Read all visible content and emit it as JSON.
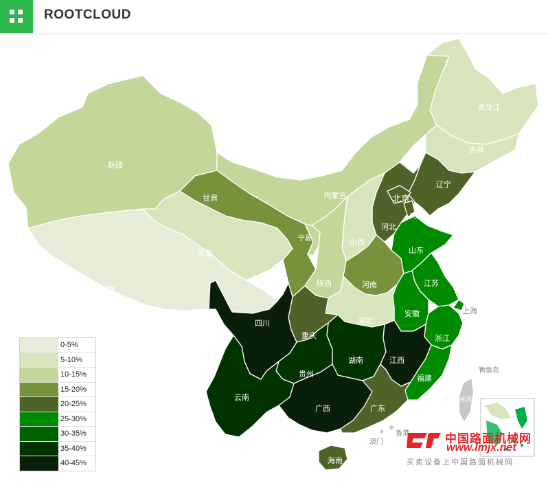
{
  "header": {
    "brand": "ROOTCLOUD",
    "menu_icon": "grid-icon"
  },
  "legend": {
    "items": [
      {
        "label": "0-5%",
        "color": "#e6ecd8"
      },
      {
        "label": "5-10%",
        "color": "#d8e4bc"
      },
      {
        "label": "10-15%",
        "color": "#c4d79b"
      },
      {
        "label": "15-20%",
        "color": "#76933c"
      },
      {
        "label": "20-25%",
        "color": "#4f6228"
      },
      {
        "label": "25-30%",
        "color": "#008a00"
      },
      {
        "label": "30-35%",
        "color": "#006100"
      },
      {
        "label": "35-40%",
        "color": "#003300"
      },
      {
        "label": "40-45%",
        "color": "#0a1f0a"
      }
    ]
  },
  "regions": [
    {
      "name": "黑龙江",
      "band": "5-10%"
    },
    {
      "name": "吉林",
      "band": "5-10%"
    },
    {
      "name": "辽宁",
      "band": "20-25%"
    },
    {
      "name": "新疆",
      "band": "10-15%"
    },
    {
      "name": "内蒙古",
      "band": "10-15%"
    },
    {
      "name": "北京",
      "band": "20-25%"
    },
    {
      "name": "天津",
      "band": "20-25%"
    },
    {
      "name": "河北",
      "band": "20-25%"
    },
    {
      "name": "甘肃",
      "band": "15-20%"
    },
    {
      "name": "宁夏",
      "band": "10-15%"
    },
    {
      "name": "山西",
      "band": "5-10%"
    },
    {
      "name": "青海",
      "band": "5-10%"
    },
    {
      "name": "西藏",
      "band": "0-5%"
    },
    {
      "name": "陕西",
      "band": "10-15%"
    },
    {
      "name": "河南",
      "band": "15-20%"
    },
    {
      "name": "山东",
      "band": "25-30%"
    },
    {
      "name": "江苏",
      "band": "25-30%"
    },
    {
      "name": "上海",
      "band": "25-30%"
    },
    {
      "name": "安徽",
      "band": "25-30%"
    },
    {
      "name": "湖北",
      "band": "5-10%"
    },
    {
      "name": "四川",
      "band": "40-45%"
    },
    {
      "name": "重庆",
      "band": "20-25%"
    },
    {
      "name": "浙江",
      "band": "25-30%"
    },
    {
      "name": "湖南",
      "band": "35-40%"
    },
    {
      "name": "江西",
      "band": "40-45%"
    },
    {
      "name": "贵州",
      "band": "35-40%"
    },
    {
      "name": "福建",
      "band": "25-30%"
    },
    {
      "name": "云南",
      "band": "35-40%"
    },
    {
      "name": "广西",
      "band": "40-45%"
    },
    {
      "name": "广东",
      "band": "20-25%"
    },
    {
      "name": "钓鱼岛",
      "band": ""
    },
    {
      "name": "台湾",
      "band": ""
    },
    {
      "name": "香港",
      "band": ""
    },
    {
      "name": "澳门",
      "band": ""
    },
    {
      "name": "海南",
      "band": "20-25%"
    }
  ],
  "watermark": {
    "cn": "中国路面机械网",
    "url": "www.lmjx.net",
    "sub": "买卖设备上中国路面机械网"
  }
}
